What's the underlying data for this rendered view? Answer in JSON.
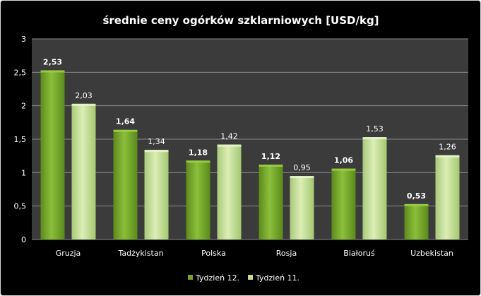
{
  "chart_data": {
    "type": "bar",
    "title": "średnie ceny ogórków szklarniowych [USD/kg]",
    "xlabel": "",
    "ylabel": "",
    "categories": [
      "Gruzja",
      "Tadżykistan",
      "Polska",
      "Rosja",
      "Białoruś",
      "Uzbekistan"
    ],
    "series": [
      {
        "name": "Tydzień 12.",
        "values": [
          2.53,
          1.64,
          1.18,
          1.12,
          1.06,
          0.53
        ],
        "labels": [
          "2,53",
          "1,64",
          "1,18",
          "1,12",
          "1,06",
          "0,53"
        ],
        "color": "#7aa32a"
      },
      {
        "name": "Tydzień 11.",
        "values": [
          2.03,
          1.34,
          1.42,
          0.95,
          1.53,
          1.26
        ],
        "labels": [
          "2,03",
          "1,34",
          "1,42",
          "0,95",
          "1,53",
          "1,26"
        ],
        "color": "#c4dd92"
      }
    ],
    "ylim": [
      0,
      3
    ],
    "yticks": [
      0,
      0.5,
      1,
      1.5,
      2,
      2.5,
      3
    ],
    "ytick_labels": [
      "0",
      "0,5",
      "1",
      "1,5",
      "2",
      "2,5",
      "3"
    ],
    "grid": true,
    "legend_position": "bottom",
    "background": "#000000",
    "plot_background": "#3b3b3b"
  }
}
